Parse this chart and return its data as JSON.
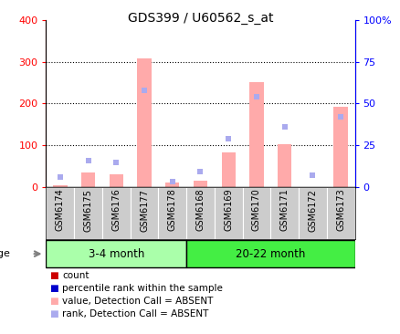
{
  "title": "GDS399 / U60562_s_at",
  "samples": [
    "GSM6174",
    "GSM6175",
    "GSM6176",
    "GSM6177",
    "GSM6178",
    "GSM6168",
    "GSM6169",
    "GSM6170",
    "GSM6171",
    "GSM6172",
    "GSM6173"
  ],
  "absent_value": [
    5,
    35,
    30,
    308,
    10,
    15,
    82,
    252,
    103,
    0,
    192
  ],
  "absent_rank": [
    6,
    16,
    15,
    58,
    3,
    9,
    29,
    54,
    36,
    7,
    42
  ],
  "present_value": [],
  "present_rank": [],
  "groups": [
    {
      "label": "3-4 month",
      "start": 0,
      "end": 5,
      "color": "#aaffaa"
    },
    {
      "label": "20-22 month",
      "start": 5,
      "end": 11,
      "color": "#44ee44"
    }
  ],
  "ylim_left": [
    0,
    400
  ],
  "ylim_right": [
    0,
    100
  ],
  "yticks_left": [
    0,
    100,
    200,
    300,
    400
  ],
  "yticks_right": [
    0,
    25,
    50,
    75,
    100
  ],
  "yticklabels_right": [
    "0",
    "25",
    "50",
    "75",
    "100%"
  ],
  "bar_color_absent": "#ffaaaa",
  "rank_color_absent": "#aaaaee",
  "bar_width": 0.5,
  "rank_marker": "s",
  "rank_markersize": 4,
  "grid_color": "black",
  "grid_linestyle": ":",
  "grid_yticks": [
    100,
    200,
    300
  ],
  "age_label": "age",
  "plot_bg": "white",
  "xtick_bg": "#cccccc",
  "legend_colors": [
    "#cc0000",
    "#0000cc",
    "#ffaaaa",
    "#aaaaee"
  ],
  "legend_labels": [
    "count",
    "percentile rank within the sample",
    "value, Detection Call = ABSENT",
    "rank, Detection Call = ABSENT"
  ]
}
